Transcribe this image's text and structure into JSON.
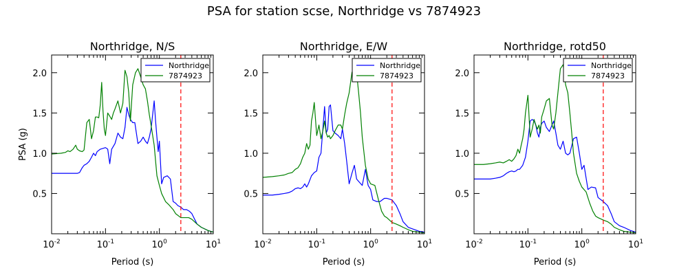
{
  "figure": {
    "title": "PSA for station scse, Northridge vs 7874923"
  },
  "colors": {
    "northridge": "#0000ff",
    "event": "#008000",
    "marker": "#ff0000",
    "axes": "#000000"
  },
  "chart_data": [
    {
      "type": "line",
      "title": "Northridge, N/S",
      "xlabel": "Period (s)",
      "ylabel": "PSA (g)",
      "xscale": "log",
      "xlim": [
        0.01,
        10
      ],
      "ylim": [
        0.0,
        2.22
      ],
      "xticks": [
        0.01,
        0.1,
        1,
        10
      ],
      "xtick_labels": [
        [
          "10",
          "-2"
        ],
        [
          "10",
          "-1"
        ],
        [
          "10",
          "0"
        ],
        [
          "10",
          "1"
        ]
      ],
      "yticks": [
        0.5,
        1.0,
        1.5,
        2.0
      ],
      "ytick_labels": [
        "0.5",
        "1.0",
        "1.5",
        "2.0"
      ],
      "vline": {
        "x": 2.5,
        "style": "dashed"
      },
      "legend": {
        "position": "top-right",
        "entries": [
          "Northridge",
          "7874923"
        ]
      },
      "series": [
        {
          "name": "Northridge",
          "color_key": "northridge",
          "x": [
            0.01,
            0.015,
            0.02,
            0.025,
            0.03,
            0.033,
            0.037,
            0.04,
            0.045,
            0.05,
            0.055,
            0.06,
            0.065,
            0.07,
            0.08,
            0.09,
            0.1,
            0.11,
            0.12,
            0.13,
            0.15,
            0.17,
            0.19,
            0.21,
            0.23,
            0.25,
            0.27,
            0.29,
            0.32,
            0.35,
            0.4,
            0.45,
            0.5,
            0.55,
            0.6,
            0.65,
            0.7,
            0.75,
            0.8,
            0.85,
            0.9,
            0.95,
            1.0,
            1.1,
            1.2,
            1.4,
            1.6,
            1.8,
            2.0,
            2.2,
            2.5,
            2.8,
            3.2,
            3.6,
            4.0,
            5.0,
            6.0,
            8.0,
            10.0
          ],
          "y": [
            0.75,
            0.75,
            0.75,
            0.75,
            0.75,
            0.76,
            0.82,
            0.85,
            0.87,
            0.9,
            0.95,
            1.0,
            0.97,
            1.02,
            1.05,
            1.06,
            1.07,
            1.05,
            0.87,
            1.05,
            1.12,
            1.25,
            1.2,
            1.18,
            1.32,
            1.57,
            1.48,
            1.42,
            1.38,
            1.38,
            1.12,
            1.15,
            1.2,
            1.15,
            1.12,
            1.2,
            1.3,
            1.48,
            1.65,
            1.4,
            1.2,
            1.02,
            1.15,
            0.62,
            0.7,
            0.72,
            0.68,
            0.4,
            0.38,
            0.35,
            0.33,
            0.3,
            0.3,
            0.28,
            0.25,
            0.12,
            0.08,
            0.04,
            0.02
          ]
        },
        {
          "name": "7874923",
          "color_key": "event",
          "x": [
            0.01,
            0.015,
            0.018,
            0.02,
            0.022,
            0.025,
            0.028,
            0.03,
            0.033,
            0.037,
            0.04,
            0.045,
            0.05,
            0.055,
            0.06,
            0.065,
            0.07,
            0.075,
            0.08,
            0.085,
            0.09,
            0.095,
            0.1,
            0.11,
            0.12,
            0.13,
            0.14,
            0.15,
            0.17,
            0.19,
            0.21,
            0.23,
            0.25,
            0.27,
            0.29,
            0.32,
            0.36,
            0.4,
            0.45,
            0.5,
            0.55,
            0.6,
            0.65,
            0.7,
            0.8,
            0.9,
            1.0,
            1.1,
            1.3,
            1.5,
            1.8,
            2.0,
            2.5,
            3.0,
            3.5,
            4.0,
            5.0,
            6.0,
            8.0,
            10.0
          ],
          "y": [
            0.99,
            1.0,
            1.01,
            1.03,
            1.02,
            1.05,
            1.1,
            1.05,
            1.03,
            1.02,
            1.04,
            1.38,
            1.42,
            1.18,
            1.28,
            1.45,
            1.45,
            1.44,
            1.6,
            1.88,
            1.52,
            1.3,
            1.22,
            1.5,
            1.46,
            1.42,
            1.5,
            1.55,
            1.65,
            1.5,
            1.62,
            2.03,
            1.95,
            1.75,
            1.4,
            1.85,
            2.0,
            2.05,
            1.95,
            1.85,
            1.8,
            1.65,
            1.48,
            1.35,
            1.1,
            0.72,
            0.6,
            0.5,
            0.4,
            0.36,
            0.3,
            0.25,
            0.2,
            0.2,
            0.2,
            0.18,
            0.12,
            0.08,
            0.04,
            0.02
          ]
        }
      ]
    },
    {
      "type": "line",
      "title": "Northridge, E/W",
      "xlabel": "Period (s)",
      "ylabel": "",
      "xscale": "log",
      "xlim": [
        0.01,
        10
      ],
      "ylim": [
        0.0,
        2.22
      ],
      "xticks": [
        0.01,
        0.1,
        1,
        10
      ],
      "xtick_labels": [
        [
          "10",
          "-2"
        ],
        [
          "10",
          "-1"
        ],
        [
          "10",
          "0"
        ],
        [
          "10",
          "1"
        ]
      ],
      "yticks": [
        0.5,
        1.0,
        1.5,
        2.0
      ],
      "ytick_labels": [
        "0.5",
        "1.0",
        "1.5",
        "2.0"
      ],
      "vline": {
        "x": 2.5,
        "style": "dashed"
      },
      "legend": {
        "position": "top-right",
        "entries": [
          "Northridge",
          "7874923"
        ]
      },
      "series": [
        {
          "name": "Northridge",
          "color_key": "northridge",
          "x": [
            0.01,
            0.015,
            0.02,
            0.025,
            0.03,
            0.035,
            0.04,
            0.045,
            0.05,
            0.055,
            0.06,
            0.065,
            0.07,
            0.08,
            0.09,
            0.1,
            0.11,
            0.12,
            0.13,
            0.14,
            0.15,
            0.16,
            0.17,
            0.18,
            0.2,
            0.22,
            0.25,
            0.28,
            0.3,
            0.33,
            0.36,
            0.4,
            0.45,
            0.5,
            0.55,
            0.6,
            0.7,
            0.8,
            0.9,
            1.0,
            1.1,
            1.3,
            1.5,
            1.8,
            2.0,
            2.5,
            3.0,
            3.5,
            4.0,
            5.0,
            6.0,
            8.0,
            10.0
          ],
          "y": [
            0.48,
            0.48,
            0.49,
            0.5,
            0.51,
            0.53,
            0.56,
            0.57,
            0.56,
            0.58,
            0.62,
            0.58,
            0.62,
            0.72,
            0.76,
            0.78,
            0.95,
            1.0,
            1.3,
            1.58,
            1.25,
            1.3,
            1.58,
            1.6,
            1.28,
            1.25,
            1.22,
            1.18,
            1.3,
            1.12,
            0.9,
            0.62,
            0.75,
            0.85,
            0.68,
            0.65,
            0.6,
            0.8,
            0.6,
            0.55,
            0.42,
            0.4,
            0.4,
            0.44,
            0.44,
            0.42,
            0.35,
            0.25,
            0.15,
            0.08,
            0.06,
            0.03,
            0.02
          ]
        },
        {
          "name": "7874923",
          "color_key": "event",
          "x": [
            0.01,
            0.015,
            0.02,
            0.025,
            0.03,
            0.035,
            0.04,
            0.045,
            0.05,
            0.055,
            0.06,
            0.065,
            0.07,
            0.075,
            0.08,
            0.085,
            0.09,
            0.1,
            0.11,
            0.12,
            0.13,
            0.14,
            0.15,
            0.16,
            0.17,
            0.18,
            0.2,
            0.22,
            0.25,
            0.28,
            0.3,
            0.33,
            0.36,
            0.4,
            0.45,
            0.5,
            0.55,
            0.6,
            0.65,
            0.7,
            0.8,
            0.9,
            1.0,
            1.2,
            1.4,
            1.6,
            1.8,
            2.0,
            2.5,
            3.0,
            3.5,
            4.0,
            5.0,
            6.0,
            8.0,
            10.0
          ],
          "y": [
            0.7,
            0.71,
            0.72,
            0.73,
            0.75,
            0.76,
            0.8,
            0.82,
            0.87,
            0.95,
            1.0,
            1.12,
            1.05,
            1.1,
            1.4,
            1.5,
            1.63,
            1.22,
            1.35,
            1.18,
            1.28,
            1.4,
            1.25,
            1.2,
            1.22,
            1.18,
            1.22,
            1.28,
            1.35,
            1.35,
            1.3,
            1.48,
            1.62,
            1.75,
            2.0,
            2.1,
            2.0,
            1.75,
            1.5,
            1.2,
            0.85,
            0.68,
            0.62,
            0.6,
            0.42,
            0.28,
            0.22,
            0.2,
            0.14,
            0.12,
            0.1,
            0.08,
            0.05,
            0.03,
            0.02,
            0.01
          ]
        }
      ]
    },
    {
      "type": "line",
      "title": "Northridge, rotd50",
      "xlabel": "Period (s)",
      "ylabel": "",
      "xscale": "log",
      "xlim": [
        0.01,
        10
      ],
      "ylim": [
        0.0,
        2.22
      ],
      "xticks": [
        0.01,
        0.1,
        1,
        10
      ],
      "xtick_labels": [
        [
          "10",
          "-2"
        ],
        [
          "10",
          "-1"
        ],
        [
          "10",
          "0"
        ],
        [
          "10",
          "1"
        ]
      ],
      "yticks": [
        0.5,
        1.0,
        1.5,
        2.0
      ],
      "ytick_labels": [
        "0.5",
        "1.0",
        "1.5",
        "2.0"
      ],
      "vline": {
        "x": 2.5,
        "style": "dashed"
      },
      "legend": {
        "position": "top-right",
        "entries": [
          "Northridge",
          "7874923"
        ]
      },
      "series": [
        {
          "name": "Northridge",
          "color_key": "northridge",
          "x": [
            0.01,
            0.015,
            0.02,
            0.025,
            0.03,
            0.035,
            0.04,
            0.045,
            0.05,
            0.055,
            0.06,
            0.065,
            0.07,
            0.08,
            0.09,
            0.1,
            0.11,
            0.12,
            0.13,
            0.14,
            0.15,
            0.16,
            0.17,
            0.18,
            0.2,
            0.22,
            0.25,
            0.28,
            0.3,
            0.33,
            0.36,
            0.4,
            0.45,
            0.5,
            0.55,
            0.6,
            0.7,
            0.8,
            0.9,
            1.0,
            1.1,
            1.3,
            1.5,
            1.8,
            2.0,
            2.5,
            3.0,
            3.5,
            4.0,
            5.0,
            6.0,
            8.0,
            10.0
          ],
          "y": [
            0.68,
            0.68,
            0.68,
            0.69,
            0.7,
            0.72,
            0.75,
            0.77,
            0.78,
            0.77,
            0.78,
            0.8,
            0.8,
            0.85,
            0.95,
            1.15,
            1.4,
            1.42,
            1.4,
            1.35,
            1.25,
            1.2,
            1.32,
            1.37,
            1.4,
            1.32,
            1.27,
            1.35,
            1.4,
            1.25,
            1.1,
            1.05,
            1.15,
            1.0,
            0.98,
            1.0,
            1.18,
            1.2,
            1.0,
            0.8,
            0.85,
            0.55,
            0.58,
            0.57,
            0.45,
            0.4,
            0.35,
            0.25,
            0.15,
            0.1,
            0.08,
            0.04,
            0.02
          ]
        },
        {
          "name": "7874923",
          "color_key": "event",
          "x": [
            0.01,
            0.015,
            0.02,
            0.025,
            0.03,
            0.035,
            0.04,
            0.045,
            0.05,
            0.055,
            0.06,
            0.065,
            0.07,
            0.075,
            0.08,
            0.085,
            0.09,
            0.1,
            0.11,
            0.12,
            0.13,
            0.14,
            0.15,
            0.16,
            0.17,
            0.18,
            0.2,
            0.22,
            0.25,
            0.28,
            0.3,
            0.33,
            0.36,
            0.4,
            0.45,
            0.5,
            0.55,
            0.6,
            0.65,
            0.7,
            0.8,
            0.9,
            1.0,
            1.2,
            1.4,
            1.6,
            1.8,
            2.0,
            2.5,
            3.0,
            3.5,
            4.0,
            5.0,
            6.0,
            8.0,
            10.0
          ],
          "y": [
            0.86,
            0.86,
            0.87,
            0.88,
            0.89,
            0.88,
            0.9,
            0.92,
            0.9,
            0.93,
            0.97,
            1.05,
            1.0,
            1.1,
            1.18,
            1.3,
            1.5,
            1.72,
            1.2,
            1.3,
            1.42,
            1.35,
            1.3,
            1.35,
            1.25,
            1.45,
            1.55,
            1.65,
            1.68,
            1.35,
            1.3,
            1.5,
            1.75,
            2.05,
            2.1,
            1.85,
            1.75,
            1.5,
            1.25,
            1.0,
            0.75,
            0.65,
            0.58,
            0.52,
            0.38,
            0.28,
            0.22,
            0.2,
            0.17,
            0.15,
            0.12,
            0.08,
            0.05,
            0.03,
            0.02,
            0.01
          ]
        }
      ]
    }
  ]
}
